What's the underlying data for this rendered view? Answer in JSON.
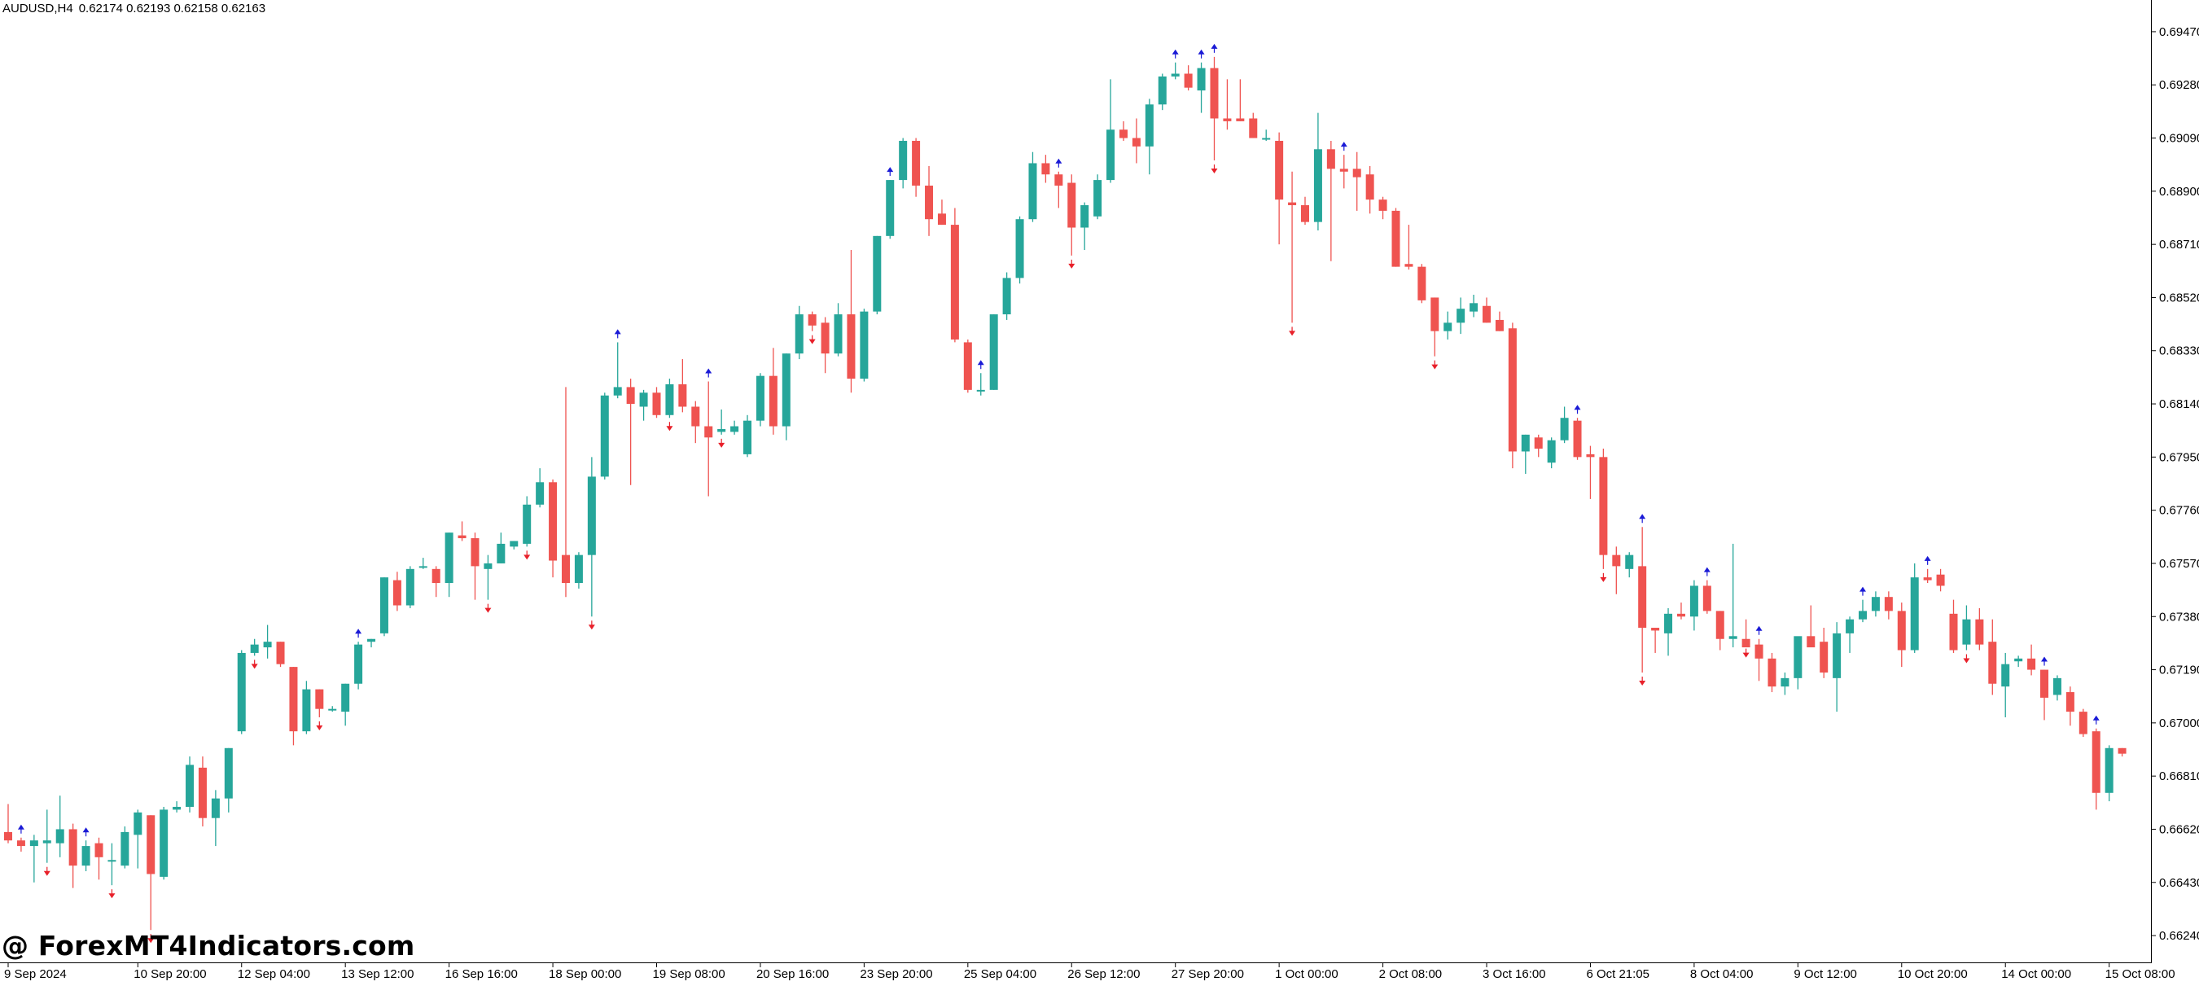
{
  "header": {
    "symbol": "AUDUSD,H4",
    "ohlc": "0.62174 0.62193 0.62158 0.62163"
  },
  "watermark": "@ ForexMT4Indicators.com",
  "colors": {
    "bull": "#26a69a",
    "bear": "#ef5350",
    "up_arrow": "#1a1ad6",
    "down_arrow": "#e8202a",
    "axis": "#000000",
    "background": "#ffffff"
  },
  "chart_data": {
    "type": "candlestick",
    "ylim": [
      0.6615,
      0.6956
    ],
    "y_ticks": [
      "0.69470",
      "0.69280",
      "0.69090",
      "0.68900",
      "0.68710",
      "0.68520",
      "0.68330",
      "0.68140",
      "0.67950",
      "0.67760",
      "0.67570",
      "0.67380",
      "0.67190",
      "0.67000",
      "0.66810",
      "0.66620",
      "0.66430",
      "0.66240"
    ],
    "x_ticks": [
      {
        "label": "9 Sep 2024",
        "index": 0
      },
      {
        "label": "10 Sep 20:00",
        "index": 10
      },
      {
        "label": "12 Sep 04:00",
        "index": 18
      },
      {
        "label": "13 Sep 12:00",
        "index": 26
      },
      {
        "label": "16 Sep 16:00",
        "index": 34
      },
      {
        "label": "18 Sep 00:00",
        "index": 42
      },
      {
        "label": "19 Sep 08:00",
        "index": 50
      },
      {
        "label": "20 Sep 16:00",
        "index": 58
      },
      {
        "label": "23 Sep 20:00",
        "index": 66
      },
      {
        "label": "25 Sep 04:00",
        "index": 74
      },
      {
        "label": "26 Sep 12:00",
        "index": 82
      },
      {
        "label": "27 Sep 20:00",
        "index": 90
      },
      {
        "label": "1 Oct 00:00",
        "index": 98
      },
      {
        "label": "2 Oct 08:00",
        "index": 106
      },
      {
        "label": "3 Oct 16:00",
        "index": 114
      },
      {
        "label": "6 Oct 21:05",
        "index": 122
      },
      {
        "label": "8 Oct 04:00",
        "index": 130
      },
      {
        "label": "9 Oct 12:00",
        "index": 138
      },
      {
        "label": "10 Oct 20:00",
        "index": 146
      },
      {
        "label": "14 Oct 00:00",
        "index": 154
      },
      {
        "label": "15 Oct 08:00",
        "index": 162
      }
    ],
    "candles": [
      {
        "o": 0.6661,
        "h": 0.6671,
        "l": 0.6657,
        "c": 0.6658
      },
      {
        "o": 0.6658,
        "h": 0.6659,
        "l": 0.6654,
        "c": 0.6656
      },
      {
        "o": 0.6656,
        "h": 0.666,
        "l": 0.6643,
        "c": 0.6658
      },
      {
        "o": 0.6657,
        "h": 0.6669,
        "l": 0.665,
        "c": 0.6658
      },
      {
        "o": 0.6657,
        "h": 0.6674,
        "l": 0.6652,
        "c": 0.6662
      },
      {
        "o": 0.6662,
        "h": 0.6664,
        "l": 0.6641,
        "c": 0.6649
      },
      {
        "o": 0.6649,
        "h": 0.6658,
        "l": 0.6647,
        "c": 0.6656
      },
      {
        "o": 0.6657,
        "h": 0.6659,
        "l": 0.6644,
        "c": 0.6652
      },
      {
        "o": 0.6651,
        "h": 0.6657,
        "l": 0.6642,
        "c": 0.6651
      },
      {
        "o": 0.6649,
        "h": 0.6663,
        "l": 0.6648,
        "c": 0.6661
      },
      {
        "o": 0.666,
        "h": 0.6669,
        "l": 0.6648,
        "c": 0.6668
      },
      {
        "o": 0.6667,
        "h": 0.6667,
        "l": 0.6626,
        "c": 0.6646
      },
      {
        "o": 0.6645,
        "h": 0.667,
        "l": 0.6644,
        "c": 0.6669
      },
      {
        "o": 0.6669,
        "h": 0.6672,
        "l": 0.6668,
        "c": 0.667
      },
      {
        "o": 0.667,
        "h": 0.6688,
        "l": 0.6668,
        "c": 0.6685
      },
      {
        "o": 0.6684,
        "h": 0.6688,
        "l": 0.6663,
        "c": 0.6666
      },
      {
        "o": 0.6666,
        "h": 0.6676,
        "l": 0.6656,
        "c": 0.6673
      },
      {
        "o": 0.6673,
        "h": 0.6691,
        "l": 0.6668,
        "c": 0.6691
      },
      {
        "o": 0.6697,
        "h": 0.6726,
        "l": 0.6696,
        "c": 0.6725
      },
      {
        "o": 0.6725,
        "h": 0.673,
        "l": 0.6724,
        "c": 0.6728
      },
      {
        "o": 0.6727,
        "h": 0.6735,
        "l": 0.6723,
        "c": 0.6729
      },
      {
        "o": 0.6729,
        "h": 0.6729,
        "l": 0.672,
        "c": 0.6721
      },
      {
        "o": 0.672,
        "h": 0.672,
        "l": 0.6692,
        "c": 0.6697
      },
      {
        "o": 0.6697,
        "h": 0.6715,
        "l": 0.6696,
        "c": 0.6712
      },
      {
        "o": 0.6712,
        "h": 0.6712,
        "l": 0.6702,
        "c": 0.6705
      },
      {
        "o": 0.6705,
        "h": 0.6706,
        "l": 0.6704,
        "c": 0.6705
      },
      {
        "o": 0.6704,
        "h": 0.6714,
        "l": 0.6699,
        "c": 0.6714
      },
      {
        "o": 0.6714,
        "h": 0.6729,
        "l": 0.6712,
        "c": 0.6728
      },
      {
        "o": 0.6729,
        "h": 0.673,
        "l": 0.6727,
        "c": 0.673
      },
      {
        "o": 0.6732,
        "h": 0.6752,
        "l": 0.6731,
        "c": 0.6752
      },
      {
        "o": 0.6751,
        "h": 0.6754,
        "l": 0.674,
        "c": 0.6742
      },
      {
        "o": 0.6742,
        "h": 0.6756,
        "l": 0.6741,
        "c": 0.6755
      },
      {
        "o": 0.6756,
        "h": 0.6759,
        "l": 0.6755,
        "c": 0.6756
      },
      {
        "o": 0.6755,
        "h": 0.6756,
        "l": 0.6745,
        "c": 0.675
      },
      {
        "o": 0.675,
        "h": 0.6768,
        "l": 0.6745,
        "c": 0.6768
      },
      {
        "o": 0.6767,
        "h": 0.6772,
        "l": 0.6765,
        "c": 0.6766
      },
      {
        "o": 0.6766,
        "h": 0.6768,
        "l": 0.6744,
        "c": 0.6756
      },
      {
        "o": 0.6755,
        "h": 0.676,
        "l": 0.6744,
        "c": 0.6757
      },
      {
        "o": 0.6757,
        "h": 0.6768,
        "l": 0.6757,
        "c": 0.6764
      },
      {
        "o": 0.6763,
        "h": 0.6765,
        "l": 0.6762,
        "c": 0.6765
      },
      {
        "o": 0.6764,
        "h": 0.6781,
        "l": 0.6763,
        "c": 0.6778
      },
      {
        "o": 0.6778,
        "h": 0.6791,
        "l": 0.6777,
        "c": 0.6786
      },
      {
        "o": 0.6786,
        "h": 0.6787,
        "l": 0.6752,
        "c": 0.6758
      },
      {
        "o": 0.676,
        "h": 0.682,
        "l": 0.6745,
        "c": 0.675
      },
      {
        "o": 0.675,
        "h": 0.6761,
        "l": 0.6748,
        "c": 0.676
      },
      {
        "o": 0.676,
        "h": 0.6795,
        "l": 0.6738,
        "c": 0.6788
      },
      {
        "o": 0.6788,
        "h": 0.6818,
        "l": 0.6787,
        "c": 0.6817
      },
      {
        "o": 0.6817,
        "h": 0.6836,
        "l": 0.6816,
        "c": 0.682
      },
      {
        "o": 0.682,
        "h": 0.6823,
        "l": 0.6785,
        "c": 0.6814
      },
      {
        "o": 0.6813,
        "h": 0.6819,
        "l": 0.6808,
        "c": 0.6818
      },
      {
        "o": 0.6818,
        "h": 0.682,
        "l": 0.6809,
        "c": 0.681
      },
      {
        "o": 0.681,
        "h": 0.6823,
        "l": 0.6809,
        "c": 0.6821
      },
      {
        "o": 0.6821,
        "h": 0.683,
        "l": 0.6811,
        "c": 0.6813
      },
      {
        "o": 0.6813,
        "h": 0.6815,
        "l": 0.68,
        "c": 0.6806
      },
      {
        "o": 0.6806,
        "h": 0.6822,
        "l": 0.6781,
        "c": 0.6802
      },
      {
        "o": 0.6804,
        "h": 0.6812,
        "l": 0.6803,
        "c": 0.6805
      },
      {
        "o": 0.6804,
        "h": 0.6808,
        "l": 0.6803,
        "c": 0.6806
      },
      {
        "o": 0.6796,
        "h": 0.681,
        "l": 0.6795,
        "c": 0.6808
      },
      {
        "o": 0.6808,
        "h": 0.6825,
        "l": 0.6806,
        "c": 0.6824
      },
      {
        "o": 0.6824,
        "h": 0.6834,
        "l": 0.6803,
        "c": 0.6806
      },
      {
        "o": 0.6806,
        "h": 0.6832,
        "l": 0.6801,
        "c": 0.6832
      },
      {
        "o": 0.6832,
        "h": 0.6849,
        "l": 0.683,
        "c": 0.6846
      },
      {
        "o": 0.6846,
        "h": 0.6847,
        "l": 0.684,
        "c": 0.6842
      },
      {
        "o": 0.6843,
        "h": 0.6845,
        "l": 0.6825,
        "c": 0.6832
      },
      {
        "o": 0.6832,
        "h": 0.685,
        "l": 0.6831,
        "c": 0.6846
      },
      {
        "o": 0.6846,
        "h": 0.6869,
        "l": 0.6818,
        "c": 0.6823
      },
      {
        "o": 0.6823,
        "h": 0.6848,
        "l": 0.6822,
        "c": 0.6847
      },
      {
        "o": 0.6847,
        "h": 0.6874,
        "l": 0.6846,
        "c": 0.6874
      },
      {
        "o": 0.6874,
        "h": 0.6894,
        "l": 0.6873,
        "c": 0.6894
      },
      {
        "o": 0.6894,
        "h": 0.6909,
        "l": 0.6891,
        "c": 0.6908
      },
      {
        "o": 0.6908,
        "h": 0.6909,
        "l": 0.6888,
        "c": 0.6892
      },
      {
        "o": 0.6892,
        "h": 0.6899,
        "l": 0.6874,
        "c": 0.688
      },
      {
        "o": 0.6882,
        "h": 0.6887,
        "l": 0.6878,
        "c": 0.6878
      },
      {
        "o": 0.6878,
        "h": 0.6884,
        "l": 0.6836,
        "c": 0.6837
      },
      {
        "o": 0.6836,
        "h": 0.6837,
        "l": 0.6818,
        "c": 0.6819
      },
      {
        "o": 0.6819,
        "h": 0.6825,
        "l": 0.6817,
        "c": 0.6819
      },
      {
        "o": 0.6819,
        "h": 0.6846,
        "l": 0.6819,
        "c": 0.6846
      },
      {
        "o": 0.6846,
        "h": 0.6861,
        "l": 0.6844,
        "c": 0.6859
      },
      {
        "o": 0.6859,
        "h": 0.6881,
        "l": 0.6857,
        "c": 0.688
      },
      {
        "o": 0.688,
        "h": 0.6904,
        "l": 0.6879,
        "c": 0.69
      },
      {
        "o": 0.69,
        "h": 0.6903,
        "l": 0.6893,
        "c": 0.6896
      },
      {
        "o": 0.6896,
        "h": 0.6897,
        "l": 0.6884,
        "c": 0.6892
      },
      {
        "o": 0.6893,
        "h": 0.6896,
        "l": 0.6867,
        "c": 0.6877
      },
      {
        "o": 0.6877,
        "h": 0.6886,
        "l": 0.6869,
        "c": 0.6885
      },
      {
        "o": 0.6881,
        "h": 0.6896,
        "l": 0.688,
        "c": 0.6894
      },
      {
        "o": 0.6894,
        "h": 0.693,
        "l": 0.6893,
        "c": 0.6912
      },
      {
        "o": 0.6912,
        "h": 0.6915,
        "l": 0.6908,
        "c": 0.6909
      },
      {
        "o": 0.6909,
        "h": 0.6916,
        "l": 0.69,
        "c": 0.6906
      },
      {
        "o": 0.6906,
        "h": 0.6923,
        "l": 0.6896,
        "c": 0.6921
      },
      {
        "o": 0.6921,
        "h": 0.6932,
        "l": 0.6919,
        "c": 0.6931
      },
      {
        "o": 0.6931,
        "h": 0.6936,
        "l": 0.693,
        "c": 0.6932
      },
      {
        "o": 0.6932,
        "h": 0.6935,
        "l": 0.6926,
        "c": 0.6927
      },
      {
        "o": 0.6926,
        "h": 0.6936,
        "l": 0.6918,
        "c": 0.6934
      },
      {
        "o": 0.6934,
        "h": 0.6938,
        "l": 0.6901,
        "c": 0.6916
      },
      {
        "o": 0.6916,
        "h": 0.693,
        "l": 0.6912,
        "c": 0.6915
      },
      {
        "o": 0.6916,
        "h": 0.693,
        "l": 0.6915,
        "c": 0.6915
      },
      {
        "o": 0.6916,
        "h": 0.6918,
        "l": 0.6909,
        "c": 0.6909
      },
      {
        "o": 0.6909,
        "h": 0.6912,
        "l": 0.6908,
        "c": 0.6909
      },
      {
        "o": 0.6908,
        "h": 0.6911,
        "l": 0.6871,
        "c": 0.6887
      },
      {
        "o": 0.6886,
        "h": 0.6897,
        "l": 0.6843,
        "c": 0.6885
      },
      {
        "o": 0.6885,
        "h": 0.6888,
        "l": 0.6878,
        "c": 0.6879
      },
      {
        "o": 0.6879,
        "h": 0.6918,
        "l": 0.6876,
        "c": 0.6905
      },
      {
        "o": 0.6905,
        "h": 0.6908,
        "l": 0.6865,
        "c": 0.6898
      },
      {
        "o": 0.6898,
        "h": 0.6903,
        "l": 0.6891,
        "c": 0.6897
      },
      {
        "o": 0.6898,
        "h": 0.6904,
        "l": 0.6883,
        "c": 0.6895
      },
      {
        "o": 0.6896,
        "h": 0.6899,
        "l": 0.6882,
        "c": 0.6887
      },
      {
        "o": 0.6887,
        "h": 0.6888,
        "l": 0.688,
        "c": 0.6883
      },
      {
        "o": 0.6883,
        "h": 0.6884,
        "l": 0.6863,
        "c": 0.6863
      },
      {
        "o": 0.6864,
        "h": 0.6878,
        "l": 0.6862,
        "c": 0.6863
      },
      {
        "o": 0.6863,
        "h": 0.6864,
        "l": 0.685,
        "c": 0.6851
      },
      {
        "o": 0.6852,
        "h": 0.6852,
        "l": 0.6831,
        "c": 0.684
      },
      {
        "o": 0.684,
        "h": 0.6847,
        "l": 0.6837,
        "c": 0.6843
      },
      {
        "o": 0.6843,
        "h": 0.6852,
        "l": 0.6839,
        "c": 0.6848
      },
      {
        "o": 0.6847,
        "h": 0.6853,
        "l": 0.6845,
        "c": 0.685
      },
      {
        "o": 0.6849,
        "h": 0.6852,
        "l": 0.6843,
        "c": 0.6843
      },
      {
        "o": 0.6844,
        "h": 0.6847,
        "l": 0.684,
        "c": 0.684
      },
      {
        "o": 0.6841,
        "h": 0.6843,
        "l": 0.6791,
        "c": 0.6797
      },
      {
        "o": 0.6797,
        "h": 0.6803,
        "l": 0.6789,
        "c": 0.6803
      },
      {
        "o": 0.6802,
        "h": 0.6803,
        "l": 0.6795,
        "c": 0.6798
      },
      {
        "o": 0.6793,
        "h": 0.6802,
        "l": 0.6791,
        "c": 0.6801
      },
      {
        "o": 0.6801,
        "h": 0.6813,
        "l": 0.68,
        "c": 0.6809
      },
      {
        "o": 0.6808,
        "h": 0.6809,
        "l": 0.6794,
        "c": 0.6795
      },
      {
        "o": 0.6796,
        "h": 0.6799,
        "l": 0.678,
        "c": 0.6795
      },
      {
        "o": 0.6795,
        "h": 0.6798,
        "l": 0.6755,
        "c": 0.676
      },
      {
        "o": 0.676,
        "h": 0.6763,
        "l": 0.6746,
        "c": 0.6756
      },
      {
        "o": 0.6755,
        "h": 0.6761,
        "l": 0.6752,
        "c": 0.676
      },
      {
        "o": 0.6756,
        "h": 0.677,
        "l": 0.6718,
        "c": 0.6734
      },
      {
        "o": 0.6734,
        "h": 0.6734,
        "l": 0.6725,
        "c": 0.6733
      },
      {
        "o": 0.6732,
        "h": 0.6741,
        "l": 0.6724,
        "c": 0.6739
      },
      {
        "o": 0.6739,
        "h": 0.6743,
        "l": 0.6737,
        "c": 0.6738
      },
      {
        "o": 0.6738,
        "h": 0.6751,
        "l": 0.6733,
        "c": 0.6749
      },
      {
        "o": 0.6749,
        "h": 0.6751,
        "l": 0.6739,
        "c": 0.674
      },
      {
        "o": 0.674,
        "h": 0.674,
        "l": 0.6726,
        "c": 0.673
      },
      {
        "o": 0.673,
        "h": 0.6764,
        "l": 0.6727,
        "c": 0.6731
      },
      {
        "o": 0.673,
        "h": 0.6737,
        "l": 0.6728,
        "c": 0.6727
      },
      {
        "o": 0.6728,
        "h": 0.673,
        "l": 0.6715,
        "c": 0.6723
      },
      {
        "o": 0.6723,
        "h": 0.6725,
        "l": 0.6711,
        "c": 0.6713
      },
      {
        "o": 0.6713,
        "h": 0.6718,
        "l": 0.671,
        "c": 0.6716
      },
      {
        "o": 0.6716,
        "h": 0.6729,
        "l": 0.6712,
        "c": 0.6731
      },
      {
        "o": 0.6731,
        "h": 0.6742,
        "l": 0.6729,
        "c": 0.6727
      },
      {
        "o": 0.6729,
        "h": 0.6734,
        "l": 0.6716,
        "c": 0.6718
      },
      {
        "o": 0.6716,
        "h": 0.6736,
        "l": 0.6704,
        "c": 0.6732
      },
      {
        "o": 0.6732,
        "h": 0.6738,
        "l": 0.6725,
        "c": 0.6737
      },
      {
        "o": 0.6737,
        "h": 0.6744,
        "l": 0.6736,
        "c": 0.674
      },
      {
        "o": 0.674,
        "h": 0.6747,
        "l": 0.6738,
        "c": 0.6745
      },
      {
        "o": 0.6745,
        "h": 0.6747,
        "l": 0.6737,
        "c": 0.674
      },
      {
        "o": 0.674,
        "h": 0.6743,
        "l": 0.672,
        "c": 0.6726
      },
      {
        "o": 0.6726,
        "h": 0.6757,
        "l": 0.6725,
        "c": 0.6752
      },
      {
        "o": 0.6752,
        "h": 0.6755,
        "l": 0.675,
        "c": 0.6751
      },
      {
        "o": 0.6753,
        "h": 0.6755,
        "l": 0.6747,
        "c": 0.6749
      },
      {
        "o": 0.6739,
        "h": 0.6744,
        "l": 0.6725,
        "c": 0.6726
      },
      {
        "o": 0.6728,
        "h": 0.6742,
        "l": 0.6726,
        "c": 0.6737
      },
      {
        "o": 0.6737,
        "h": 0.6741,
        "l": 0.6726,
        "c": 0.6728
      },
      {
        "o": 0.6729,
        "h": 0.6737,
        "l": 0.671,
        "c": 0.6714
      },
      {
        "o": 0.6713,
        "h": 0.6725,
        "l": 0.6702,
        "c": 0.6721
      },
      {
        "o": 0.6722,
        "h": 0.6724,
        "l": 0.672,
        "c": 0.6723
      },
      {
        "o": 0.6723,
        "h": 0.6728,
        "l": 0.6717,
        "c": 0.6719
      },
      {
        "o": 0.6719,
        "h": 0.6719,
        "l": 0.6701,
        "c": 0.6709
      },
      {
        "o": 0.671,
        "h": 0.6717,
        "l": 0.6708,
        "c": 0.6716
      },
      {
        "o": 0.6711,
        "h": 0.6713,
        "l": 0.6699,
        "c": 0.6704
      },
      {
        "o": 0.6704,
        "h": 0.6705,
        "l": 0.6695,
        "c": 0.6696
      },
      {
        "o": 0.6697,
        "h": 0.6698,
        "l": 0.6669,
        "c": 0.6675
      },
      {
        "o": 0.6675,
        "h": 0.6692,
        "l": 0.6672,
        "c": 0.6691
      },
      {
        "o": 0.6691,
        "h": 0.6691,
        "l": 0.6688,
        "c": 0.6689
      }
    ],
    "up_arrows": [
      1,
      6,
      27,
      47,
      54,
      68,
      75,
      81,
      90,
      92,
      93,
      103,
      121,
      126,
      131,
      135,
      143,
      148,
      157,
      161
    ],
    "down_arrows": [
      3,
      8,
      11,
      19,
      24,
      37,
      40,
      45,
      51,
      55,
      62,
      82,
      93,
      99,
      110,
      123,
      126,
      134,
      151,
      164
    ]
  }
}
